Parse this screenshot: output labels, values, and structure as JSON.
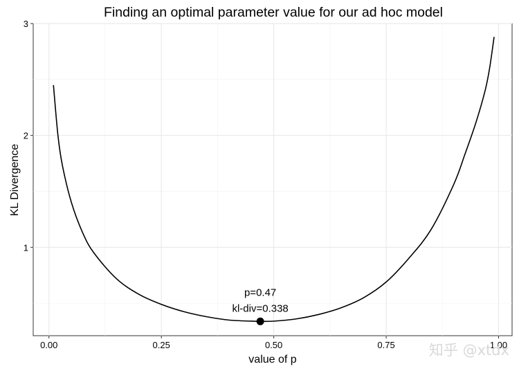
{
  "chart_data": {
    "type": "line",
    "title": "Finding an optimal parameter value for our ad hoc model",
    "xlabel": "value of p",
    "ylabel": "KL Divergence",
    "xlim": [
      -0.035,
      1.03
    ],
    "ylim": [
      0.21,
      3.0
    ],
    "x_ticks": [
      0.0,
      0.25,
      0.5,
      0.75,
      1.0
    ],
    "x_tick_labels": [
      "0.00",
      "0.25",
      "0.50",
      "0.75",
      "1.00"
    ],
    "y_ticks": [
      1,
      2,
      3
    ],
    "y_tick_labels": [
      "1",
      "2",
      "3"
    ],
    "grid": true,
    "series": [
      {
        "x": [
          0.01,
          0.02,
          0.03,
          0.05,
          0.075,
          0.1,
          0.15,
          0.2,
          0.25,
          0.3,
          0.35,
          0.4,
          0.45,
          0.47,
          0.5,
          0.55,
          0.6,
          0.65,
          0.7,
          0.75,
          0.8,
          0.85,
          0.9,
          0.925,
          0.95,
          0.97,
          0.98,
          0.99
        ],
        "y": [
          2.45,
          2.0,
          1.73,
          1.4,
          1.13,
          0.95,
          0.72,
          0.58,
          0.49,
          0.425,
          0.38,
          0.35,
          0.34,
          0.338,
          0.34,
          0.36,
          0.4,
          0.46,
          0.55,
          0.69,
          0.9,
          1.16,
          1.56,
          1.83,
          2.12,
          2.4,
          2.6,
          2.88
        ]
      }
    ],
    "highlight": {
      "x": 0.47,
      "y": 0.338,
      "label_line1": "p=0.47",
      "label_line2": "kl-div=0.338"
    }
  },
  "watermark": "知乎 @xtdx"
}
